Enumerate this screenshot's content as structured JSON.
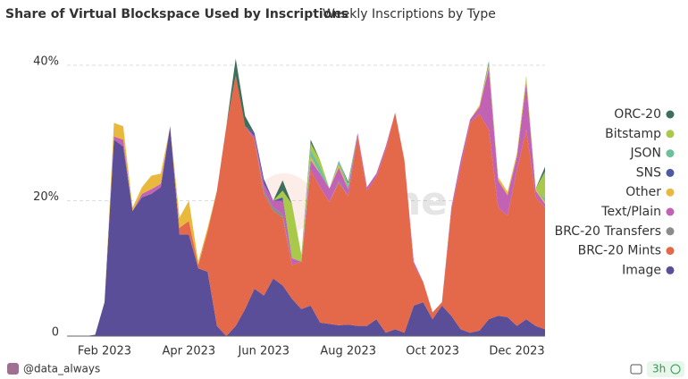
{
  "header": {
    "title": "Share of Virtual Blockspace Used by Inscriptions",
    "subtitle": "Weekly Inscriptions by Type"
  },
  "chart_data": {
    "type": "stacked-area",
    "categories": [
      null,
      null,
      null,
      null,
      "Feb 2023",
      null,
      null,
      null,
      null,
      null,
      null,
      null,
      null,
      "Apr 2023",
      null,
      null,
      null,
      null,
      null,
      null,
      null,
      "Jun 2023",
      null,
      null,
      null,
      null,
      null,
      null,
      null,
      null,
      "Aug 2023",
      null,
      null,
      null,
      null,
      null,
      null,
      null,
      null,
      "Oct 2023",
      null,
      null,
      null,
      null,
      null,
      null,
      null,
      null,
      "Dec 2023",
      null,
      null,
      null
    ],
    "ylim": [
      0,
      43.7
    ],
    "yticks": [
      0,
      {
        "value": 20,
        "label": "20%"
      },
      {
        "value": 40,
        "label": "40%"
      }
    ],
    "grid": true,
    "legend": "right",
    "series": [
      {
        "name": "Image",
        "color": "#5b4e98",
        "values": [
          0,
          0,
          0,
          0.2,
          5,
          29,
          28,
          18.5,
          20.5,
          21,
          22,
          31,
          15,
          15,
          10,
          9.5,
          1.5,
          0,
          1.5,
          4,
          7,
          6,
          8.5,
          7.5,
          5.5,
          4,
          4.5,
          2,
          1.8,
          1.6,
          1.7,
          1.5,
          1.5,
          2.5,
          0.5,
          1,
          0.5,
          4.5,
          5,
          2.5,
          4.5,
          3,
          1,
          0.5,
          0.8,
          2.5,
          3,
          2.8,
          1.5,
          2.5,
          1.5,
          1
        ]
      },
      {
        "name": "BRC-20 Mints",
        "color": "#e4694a",
        "values": [
          0,
          0,
          0,
          0,
          0,
          0,
          0,
          0,
          0,
          0,
          0,
          0,
          1,
          2,
          0.5,
          6,
          20,
          31,
          37,
          27,
          22,
          15,
          10,
          10,
          5,
          7,
          20,
          20,
          18,
          21,
          19,
          28,
          20,
          21,
          27,
          32,
          25.5,
          6,
          3,
          1,
          0.5,
          15.5,
          24,
          31,
          32,
          28,
          16,
          15,
          23,
          28,
          19,
          18
        ]
      },
      {
        "name": "BRC-20 Transfers",
        "color": "#8c8c8c",
        "values": [
          0,
          0,
          0,
          0,
          0,
          0,
          0,
          0,
          0,
          0,
          0,
          0,
          0,
          0,
          0,
          0,
          0,
          0,
          0,
          0,
          0,
          0.5,
          0.5,
          0.5,
          0,
          0,
          0,
          0,
          0,
          0.3,
          0,
          0,
          0,
          0,
          0,
          0,
          0,
          0,
          0,
          0,
          0,
          0,
          0,
          0,
          0,
          0,
          0,
          0,
          0,
          0,
          0,
          0
        ]
      },
      {
        "name": "Text/Plain",
        "color": "#c262b4",
        "values": [
          0,
          0,
          0,
          0,
          0,
          0.5,
          1,
          0,
          0.5,
          0.7,
          0.5,
          0,
          0,
          0,
          0,
          0,
          0,
          0,
          0,
          0,
          0.5,
          1,
          1,
          2,
          1,
          0,
          1.5,
          2,
          2,
          2,
          1,
          0.5,
          0.5,
          0.5,
          0.5,
          0,
          0,
          0.5,
          0,
          0,
          0,
          0.5,
          1,
          0.5,
          1,
          9,
          4,
          3,
          2,
          7,
          1,
          0.5
        ]
      },
      {
        "name": "Other",
        "color": "#e8b93c",
        "values": [
          0,
          0,
          0,
          0,
          0,
          2,
          2,
          0.5,
          1,
          2,
          1.5,
          0,
          1.5,
          3,
          0.5,
          0.5,
          0,
          0,
          0,
          0,
          0,
          0,
          0,
          0,
          0,
          0,
          0.5,
          0,
          0,
          0.5,
          0,
          0,
          0,
          0,
          0,
          0,
          0,
          0,
          0,
          0,
          0,
          0,
          0,
          0,
          0.3,
          0.5,
          0.5,
          0.5,
          0.5,
          0.5,
          0.3,
          0.3
        ]
      },
      {
        "name": "SNS",
        "color": "#5058a2",
        "values": [
          0,
          0,
          0,
          0,
          0,
          0,
          0,
          0,
          0,
          0,
          0,
          0,
          0,
          0,
          0,
          0,
          0,
          0,
          0,
          0,
          0.5,
          0.7,
          0,
          0.5,
          0,
          0,
          0,
          0,
          0,
          0,
          0,
          0,
          0,
          0,
          0,
          0,
          0,
          0,
          0,
          0,
          0,
          0,
          0,
          0,
          0,
          0,
          0,
          0,
          0,
          0,
          0,
          0
        ]
      },
      {
        "name": "JSON",
        "color": "#6cc09b",
        "values": [
          0,
          0,
          0,
          0,
          0,
          0,
          0,
          0,
          0,
          0,
          0,
          0,
          0,
          0,
          0,
          0,
          0,
          0,
          0,
          0,
          0,
          0,
          0,
          0,
          0,
          0,
          1,
          1,
          0,
          0.5,
          0.5,
          0,
          0,
          0,
          0,
          0,
          0,
          0,
          0,
          0,
          0,
          0,
          0,
          0,
          0,
          0.3,
          0,
          0,
          0,
          0,
          0,
          0.5
        ]
      },
      {
        "name": "Bitstamp",
        "color": "#a9c94b",
        "values": [
          0,
          0,
          0,
          0,
          0,
          0,
          0,
          0,
          0,
          0,
          0,
          0,
          0,
          0,
          0,
          0,
          0,
          0,
          0,
          0,
          0,
          0,
          0,
          1,
          8,
          1,
          1,
          1,
          0,
          0,
          0.3,
          0,
          0,
          0,
          0,
          0,
          0,
          0,
          0,
          0,
          0,
          0,
          0,
          0,
          0,
          0,
          0,
          0,
          0,
          0.5,
          0,
          4
        ]
      },
      {
        "name": "ORC-20",
        "color": "#3e6f5b",
        "values": [
          0,
          0,
          0,
          0,
          0,
          0,
          0,
          0,
          0,
          0,
          0,
          0,
          0,
          0,
          0,
          0,
          0,
          0,
          2.5,
          1.5,
          0,
          0,
          0,
          1.5,
          0,
          0,
          0.5,
          0,
          0,
          0,
          0.3,
          0,
          0,
          0,
          0,
          0,
          0,
          0,
          0,
          0,
          0,
          0,
          0,
          0,
          0,
          0.3,
          0,
          0,
          0,
          0,
          0,
          0.7
        ]
      }
    ]
  },
  "watermark": "Dune",
  "footer": {
    "user": "@data_always",
    "age": "3h"
  }
}
